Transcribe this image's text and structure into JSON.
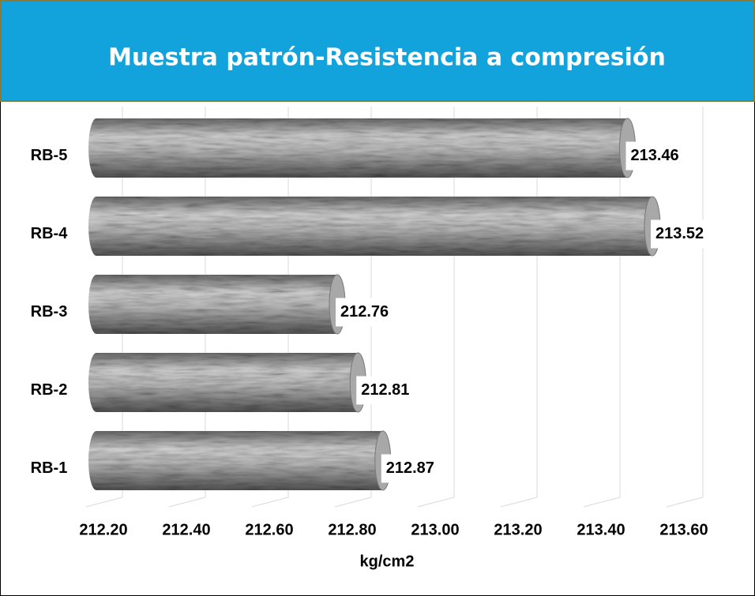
{
  "chart_data": {
    "type": "bar",
    "orientation": "horizontal",
    "title": "Muestra patrón-Resistencia a compresión",
    "x_label": "kg/cm2",
    "categories": [
      "RB-1",
      "RB-2",
      "RB-3",
      "RB-4",
      "RB-5"
    ],
    "values": [
      212.87,
      212.81,
      212.76,
      213.52,
      213.46
    ],
    "color": "#9a9a9a",
    "xlim": [
      212.2,
      213.6
    ],
    "xticks": [
      {
        "value": 212.2,
        "label": "212.20"
      },
      {
        "value": 212.4,
        "label": "212.40"
      },
      {
        "value": 212.6,
        "label": "212.60"
      },
      {
        "value": 212.8,
        "label": "212.80"
      },
      {
        "value": 213.0,
        "label": "213.00"
      },
      {
        "value": 213.2,
        "label": "213.20"
      },
      {
        "value": 213.4,
        "label": "213.40"
      },
      {
        "value": 213.6,
        "label": "213.60"
      }
    ],
    "grid": true
  }
}
